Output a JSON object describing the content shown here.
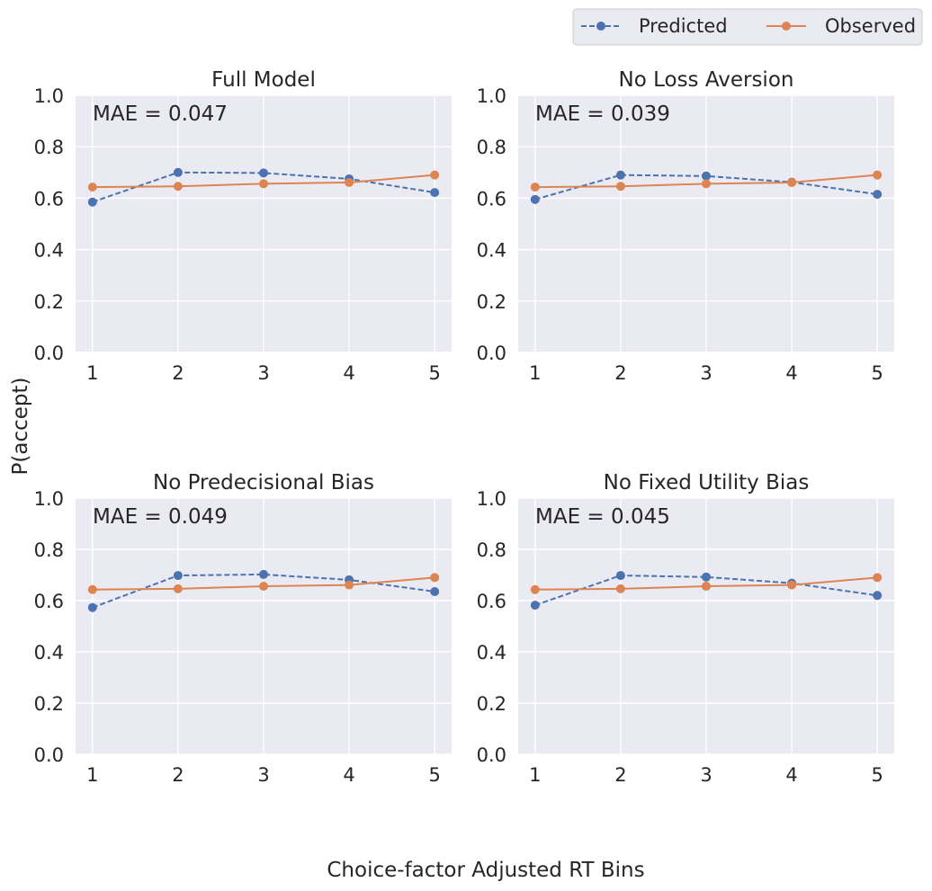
{
  "figure": {
    "ylabel": "P(accept)",
    "xlabel": "Choice-factor Adjusted RT Bins"
  },
  "legend": {
    "items": [
      {
        "label": "Predicted",
        "color": "#4c72b0",
        "style": "dashed"
      },
      {
        "label": "Observed",
        "color": "#dd8452",
        "style": "solid"
      }
    ],
    "placement": "top-right",
    "ncol": 2
  },
  "colors": {
    "panel_bg": "#eaeaf2",
    "grid": "#ffffff",
    "predicted": "#4c72b0",
    "observed": "#dd8452",
    "text": "#262626"
  },
  "chart_data": [
    {
      "type": "line",
      "title": "Full Model",
      "annotation": "MAE = 0.047",
      "x": [
        1,
        2,
        3,
        4,
        5
      ],
      "ylim": [
        0,
        1
      ],
      "yticks": [
        "0.0",
        "0.2",
        "0.4",
        "0.6",
        "0.8",
        "1.0"
      ],
      "xticks": [
        "1",
        "2",
        "3",
        "4",
        "5"
      ],
      "grid": true,
      "series": [
        {
          "name": "Predicted",
          "values": [
            0.585,
            0.7,
            0.698,
            0.675,
            0.622
          ]
        },
        {
          "name": "Observed",
          "values": [
            0.643,
            0.646,
            0.656,
            0.661,
            0.69
          ]
        }
      ]
    },
    {
      "type": "line",
      "title": "No Loss Aversion",
      "annotation": "MAE = 0.039",
      "x": [
        1,
        2,
        3,
        4,
        5
      ],
      "ylim": [
        0,
        1
      ],
      "yticks": [
        "0.0",
        "0.2",
        "0.4",
        "0.6",
        "0.8",
        "1.0"
      ],
      "xticks": [
        "1",
        "2",
        "3",
        "4",
        "5"
      ],
      "grid": true,
      "series": [
        {
          "name": "Predicted",
          "values": [
            0.595,
            0.69,
            0.686,
            0.662,
            0.615
          ]
        },
        {
          "name": "Observed",
          "values": [
            0.643,
            0.646,
            0.656,
            0.661,
            0.69
          ]
        }
      ]
    },
    {
      "type": "line",
      "title": "No Predecisional Bias",
      "annotation": "MAE = 0.049",
      "x": [
        1,
        2,
        3,
        4,
        5
      ],
      "ylim": [
        0,
        1
      ],
      "yticks": [
        "0.0",
        "0.2",
        "0.4",
        "0.6",
        "0.8",
        "1.0"
      ],
      "xticks": [
        "1",
        "2",
        "3",
        "4",
        "5"
      ],
      "grid": true,
      "series": [
        {
          "name": "Predicted",
          "values": [
            0.573,
            0.698,
            0.702,
            0.681,
            0.635
          ]
        },
        {
          "name": "Observed",
          "values": [
            0.643,
            0.646,
            0.656,
            0.661,
            0.69
          ]
        }
      ]
    },
    {
      "type": "line",
      "title": "No Fixed Utility Bias",
      "annotation": "MAE = 0.045",
      "x": [
        1,
        2,
        3,
        4,
        5
      ],
      "ylim": [
        0,
        1
      ],
      "yticks": [
        "0.0",
        "0.2",
        "0.4",
        "0.6",
        "0.8",
        "1.0"
      ],
      "xticks": [
        "1",
        "2",
        "3",
        "4",
        "5"
      ],
      "grid": true,
      "series": [
        {
          "name": "Predicted",
          "values": [
            0.582,
            0.698,
            0.692,
            0.668,
            0.62
          ]
        },
        {
          "name": "Observed",
          "values": [
            0.643,
            0.646,
            0.656,
            0.661,
            0.69
          ]
        }
      ]
    }
  ]
}
